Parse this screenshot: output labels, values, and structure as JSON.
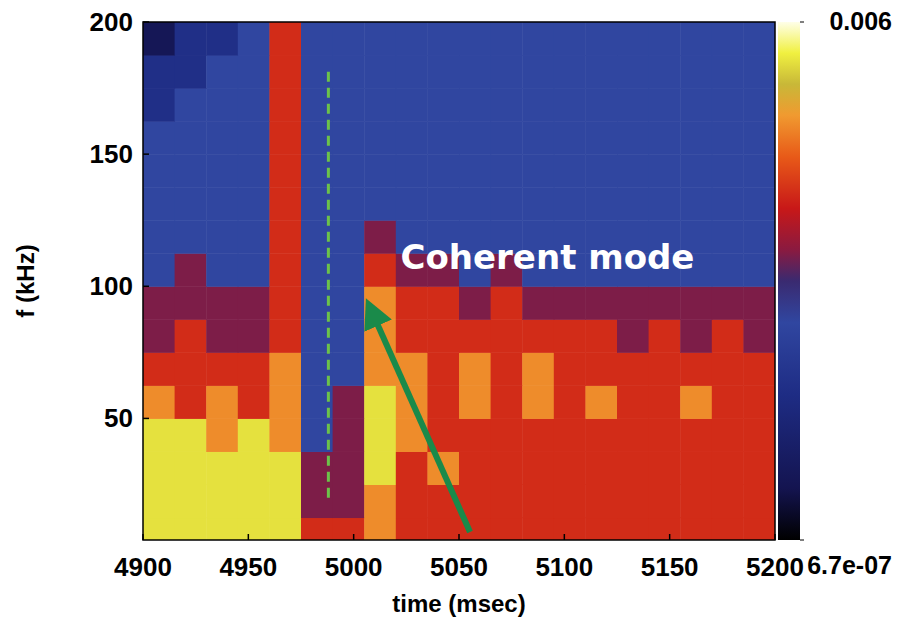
{
  "chart_data": {
    "type": "heatmap",
    "x_label": "time (msec)",
    "y_label": "f (kHz)",
    "xlim": [
      4900,
      5200
    ],
    "xticks": [
      4900,
      4950,
      5000,
      5050,
      5100,
      5150,
      5200
    ],
    "ylim": [
      4,
      200
    ],
    "yticks": [
      50,
      100,
      150,
      200
    ],
    "x_bins": [
      4900,
      4915,
      4930,
      4945,
      4960,
      4975,
      4990,
      5005,
      5020,
      5035,
      5050,
      5065,
      5080,
      5095,
      5110,
      5125,
      5140,
      5155,
      5170,
      5185,
      5200
    ],
    "y_bins": [
      0,
      12.5,
      25,
      37.5,
      50,
      62.5,
      75,
      87.5,
      100,
      112.5,
      125,
      137.5,
      150,
      162.5,
      175,
      187.5,
      200
    ],
    "cells": [
      [
        0.003,
        0.003,
        0.003,
        0.003,
        0.003,
        0.0003,
        0.0003,
        0.001,
        0.0003,
        0.0003,
        0.0003,
        0.0003,
        0.0003,
        0.0003,
        0.0003,
        0.0003,
        0.0003,
        0.0003,
        0.0003,
        0.0003
      ],
      [
        0.003,
        0.003,
        0.003,
        0.003,
        0.003,
        0.0001,
        0.0001,
        0.001,
        0.0003,
        0.0003,
        0.0003,
        0.0003,
        0.0003,
        0.0003,
        0.0003,
        0.0003,
        0.0003,
        0.0003,
        0.0003,
        0.0003
      ],
      [
        0.003,
        0.003,
        0.003,
        0.003,
        0.003,
        0.0001,
        0.0001,
        0.003,
        0.0003,
        0.001,
        0.0003,
        0.0003,
        0.0003,
        0.0003,
        0.0003,
        0.0003,
        0.0003,
        0.0003,
        0.0003,
        0.0003
      ],
      [
        0.003,
        0.003,
        0.001,
        0.003,
        0.001,
        3e-05,
        0.0001,
        0.003,
        0.001,
        0.0003,
        0.0003,
        0.0003,
        0.0003,
        0.0003,
        0.0003,
        0.0003,
        0.0003,
        0.0003,
        0.0003,
        0.0003
      ],
      [
        0.001,
        0.0003,
        0.001,
        0.0003,
        0.001,
        3e-05,
        0.0001,
        0.003,
        0.001,
        0.0003,
        0.001,
        0.0003,
        0.001,
        0.0003,
        0.001,
        0.0003,
        0.0003,
        0.001,
        0.0003,
        0.0003
      ],
      [
        0.0003,
        0.0003,
        0.0003,
        0.0003,
        0.001,
        3e-05,
        3e-05,
        0.001,
        0.001,
        0.0003,
        0.001,
        0.0003,
        0.001,
        0.0003,
        0.0003,
        0.0003,
        0.0003,
        0.0003,
        0.0003,
        0.0003
      ],
      [
        0.0001,
        0.0003,
        0.0001,
        0.0001,
        0.0003,
        3e-05,
        3e-05,
        0.001,
        0.0003,
        0.0003,
        0.0003,
        0.0003,
        0.0003,
        0.0003,
        0.0003,
        0.0001,
        0.0003,
        0.0001,
        0.0003,
        0.0001
      ],
      [
        0.0001,
        0.0001,
        0.0001,
        0.0001,
        0.0003,
        3e-05,
        3e-05,
        0.001,
        0.0003,
        0.0003,
        0.0001,
        0.0003,
        0.0001,
        0.0001,
        0.0001,
        0.0001,
        0.0001,
        0.0001,
        0.0001,
        0.0001
      ],
      [
        3e-05,
        0.0001,
        3e-05,
        3e-05,
        0.0003,
        3e-05,
        3e-05,
        0.0003,
        0.0001,
        0.0001,
        3e-05,
        0.0001,
        3e-05,
        3e-05,
        3e-05,
        3e-05,
        3e-05,
        3e-05,
        3e-05,
        3e-05
      ],
      [
        3e-05,
        3e-05,
        3e-05,
        3e-05,
        0.0003,
        3e-05,
        3e-05,
        0.0001,
        3e-05,
        3e-05,
        3e-05,
        3e-05,
        3e-05,
        3e-05,
        3e-05,
        3e-05,
        3e-05,
        3e-05,
        3e-05,
        3e-05
      ],
      [
        3e-05,
        3e-05,
        3e-05,
        3e-05,
        0.0003,
        3e-05,
        3e-05,
        3e-05,
        3e-05,
        3e-05,
        3e-05,
        3e-05,
        3e-05,
        3e-05,
        3e-05,
        3e-05,
        3e-05,
        3e-05,
        3e-05,
        3e-05
      ],
      [
        3e-05,
        3e-05,
        3e-05,
        3e-05,
        0.0003,
        3e-05,
        3e-05,
        3e-05,
        3e-05,
        3e-05,
        3e-05,
        3e-05,
        3e-05,
        3e-05,
        3e-05,
        3e-05,
        3e-05,
        3e-05,
        3e-05,
        3e-05
      ],
      [
        3e-05,
        3e-05,
        3e-05,
        3e-05,
        0.0003,
        3e-05,
        3e-05,
        3e-05,
        3e-05,
        3e-05,
        3e-05,
        3e-05,
        3e-05,
        3e-05,
        3e-05,
        3e-05,
        3e-05,
        3e-05,
        3e-05,
        3e-05
      ],
      [
        1e-05,
        3e-05,
        3e-05,
        3e-05,
        0.0003,
        3e-05,
        3e-05,
        3e-05,
        3e-05,
        3e-05,
        3e-05,
        3e-05,
        3e-05,
        3e-05,
        3e-05,
        3e-05,
        3e-05,
        3e-05,
        3e-05,
        3e-05
      ],
      [
        1e-05,
        1e-05,
        3e-05,
        3e-05,
        0.0003,
        3e-05,
        3e-05,
        3e-05,
        3e-05,
        3e-05,
        3e-05,
        3e-05,
        3e-05,
        3e-05,
        3e-05,
        3e-05,
        3e-05,
        3e-05,
        3e-05,
        3e-05
      ],
      [
        2e-06,
        1e-05,
        1e-05,
        3e-05,
        0.0003,
        3e-05,
        3e-05,
        3e-05,
        3e-05,
        3e-05,
        3e-05,
        3e-05,
        3e-05,
        3e-05,
        3e-05,
        3e-05,
        3e-05,
        3e-05,
        3e-05,
        3e-05
      ]
    ],
    "colorbar": {
      "range": [
        6.7e-07,
        0.006
      ],
      "ticks": [
        0.006,
        {
          "value": 6.7e-07,
          "label": "6.7e-07"
        }
      ],
      "log": true
    },
    "vline": {
      "x": 4988,
      "y_range": [
        20,
        183
      ]
    },
    "annotations": [
      {
        "text": "Coherent mode",
        "x": 5092,
        "y": 110
      }
    ]
  }
}
